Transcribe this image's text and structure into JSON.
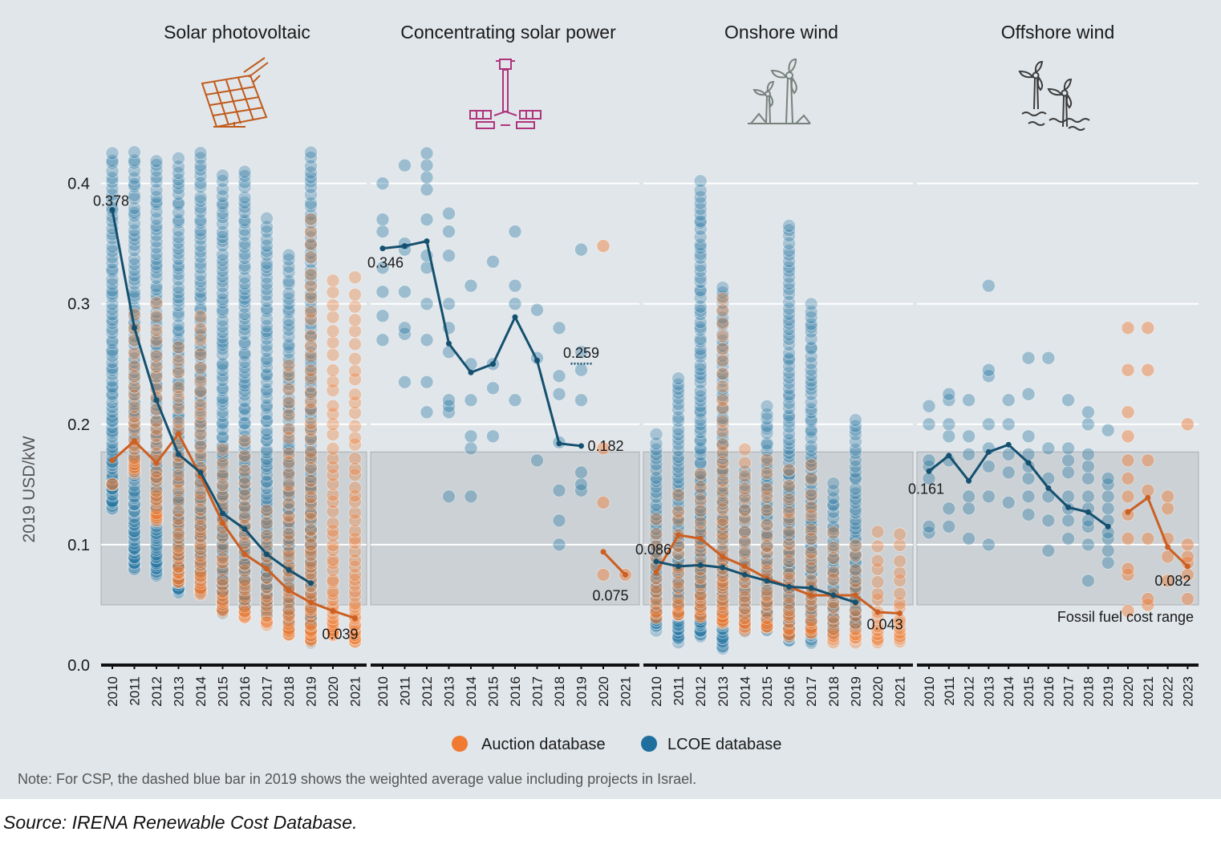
{
  "chart_data": {
    "type": "scatter",
    "ylabel": "2019 USD/kW",
    "ylim": [
      0,
      0.42
    ],
    "yticks": [
      "0.0",
      "0.1",
      "0.2",
      "0.3",
      "0.4"
    ],
    "grid": true,
    "band": {
      "label": "Fossil fuel cost range",
      "range": [
        0.05,
        0.177
      ]
    },
    "legend": {
      "position": "bottom-center",
      "entries": [
        {
          "label": "Auction database",
          "color": "#f07a32"
        },
        {
          "label": "LCOE database",
          "color": "#1e6f9e"
        }
      ]
    },
    "note": "Note: For CSP, the dashed blue bar in 2019 shows the weighted average value including projects in Israel.",
    "source": "Source: IRENA Renewable Cost Database.",
    "colors": {
      "auction": "#f07a32",
      "lcoe": "#1e6f9e",
      "auction_line": "#cc5f22",
      "lcoe_line": "#14506f",
      "background": "#e1e6ea",
      "band": "#cbd1d5",
      "pv_icon": "#c05b1c",
      "csp_icon": "#b0347c",
      "wind_icon": "#77827c"
    },
    "panels": [
      {
        "title": "Solar photovoltaic",
        "icon": "solar-panel-icon",
        "years": [
          "2010",
          "2011",
          "2012",
          "2013",
          "2014",
          "2015",
          "2016",
          "2017",
          "2018",
          "2019",
          "2020",
          "2021"
        ],
        "lcoe_avg": {
          "years": [
            "2010",
            "2011",
            "2012",
            "2013",
            "2014",
            "2015",
            "2016",
            "2017",
            "2018",
            "2019"
          ],
          "values": [
            0.378,
            0.28,
            0.22,
            0.175,
            0.16,
            0.126,
            0.113,
            0.092,
            0.079,
            0.068
          ]
        },
        "auction_avg": {
          "years": [
            "2010",
            "2011",
            "2012",
            "2013",
            "2014",
            "2015",
            "2016",
            "2017",
            "2018",
            "2019",
            "2020",
            "2021"
          ],
          "values": [
            0.17,
            0.186,
            0.168,
            0.192,
            0.157,
            0.118,
            0.092,
            0.08,
            0.062,
            0.052,
            0.045,
            0.039
          ]
        },
        "lcoe_range": {
          "2010": [
            0.13,
            0.425
          ],
          "2011": [
            0.08,
            0.425
          ],
          "2012": [
            0.075,
            0.42
          ],
          "2013": [
            0.06,
            0.42
          ],
          "2014": [
            0.06,
            0.425
          ],
          "2015": [
            0.045,
            0.405
          ],
          "2016": [
            0.045,
            0.41
          ],
          "2017": [
            0.04,
            0.37
          ],
          "2018": [
            0.03,
            0.34
          ],
          "2019": [
            0.02,
            0.425
          ]
        },
        "auction_range": {
          "2010": [
            0.15,
            0.15
          ],
          "2011": [
            0.16,
            0.29
          ],
          "2012": [
            0.12,
            0.3
          ],
          "2013": [
            0.07,
            0.265
          ],
          "2014": [
            0.06,
            0.29
          ],
          "2015": [
            0.045,
            0.18
          ],
          "2016": [
            0.04,
            0.185
          ],
          "2017": [
            0.035,
            0.13
          ],
          "2018": [
            0.025,
            0.25
          ],
          "2019": [
            0.02,
            0.37
          ],
          "2020": [
            0.025,
            0.32
          ],
          "2021": [
            0.02,
            0.32
          ]
        },
        "labels": [
          {
            "text": "0.378",
            "year": "2010",
            "value": 0.378,
            "anchor": "start"
          },
          {
            "text": "0.039",
            "year": "2021",
            "value": 0.039,
            "anchor": "end"
          }
        ]
      },
      {
        "title": "Concentrating solar power",
        "icon": "csp-tower-icon",
        "years": [
          "2010",
          "2011",
          "2012",
          "2013",
          "2014",
          "2015",
          "2016",
          "2017",
          "2018",
          "2019",
          "2020",
          "2021"
        ],
        "lcoe_avg": {
          "years": [
            "2010",
            "2011",
            "2012",
            "2013",
            "2014",
            "2015",
            "2016",
            "2017",
            "2018",
            "2019"
          ],
          "values": [
            0.346,
            0.348,
            0.352,
            0.267,
            0.243,
            0.25,
            0.289,
            0.253,
            0.184,
            0.182
          ]
        },
        "auction_avg": {
          "years": [
            "2020",
            "2021"
          ],
          "values": [
            0.094,
            0.075
          ]
        },
        "dashed_2019": 0.259,
        "lcoe_points": {
          "2010": [
            0.27,
            0.29,
            0.31,
            0.33,
            0.36,
            0.37,
            0.4
          ],
          "2011": [
            0.235,
            0.275,
            0.28,
            0.31,
            0.345,
            0.35,
            0.415
          ],
          "2012": [
            0.21,
            0.235,
            0.27,
            0.3,
            0.33,
            0.34,
            0.37,
            0.395,
            0.405,
            0.415,
            0.425
          ],
          "2013": [
            0.14,
            0.21,
            0.215,
            0.22,
            0.26,
            0.28,
            0.3,
            0.34,
            0.36,
            0.375
          ],
          "2014": [
            0.14,
            0.18,
            0.19,
            0.22,
            0.25,
            0.315
          ],
          "2015": [
            0.19,
            0.23,
            0.25,
            0.335
          ],
          "2016": [
            0.22,
            0.3,
            0.315,
            0.36
          ],
          "2017": [
            0.17,
            0.255,
            0.295
          ],
          "2018": [
            0.1,
            0.12,
            0.145,
            0.185,
            0.225,
            0.24,
            0.28
          ],
          "2019": [
            0.145,
            0.15,
            0.16,
            0.22,
            0.245,
            0.26,
            0.345
          ]
        },
        "auction_points": {
          "2020": [
            0.075,
            0.135,
            0.18,
            0.348
          ],
          "2021": [
            0.075
          ]
        },
        "labels": [
          {
            "text": "0.346",
            "year": "2010",
            "value": 0.346,
            "anchor": "end"
          },
          {
            "text": "0.259",
            "year": "2019",
            "value": 0.259,
            "anchor": "middle"
          },
          {
            "text": "0.182",
            "year": "2019",
            "value": 0.182,
            "anchor": "start"
          },
          {
            "text": "0.075",
            "year": "2021",
            "value": 0.075,
            "anchor": "end"
          }
        ]
      },
      {
        "title": "Onshore wind",
        "icon": "onshore-wind-turbine-icon",
        "years": [
          "2010",
          "2011",
          "2012",
          "2013",
          "2014",
          "2015",
          "2016",
          "2017",
          "2018",
          "2019",
          "2020",
          "2021"
        ],
        "lcoe_avg": {
          "years": [
            "2010",
            "2011",
            "2012",
            "2013",
            "2014",
            "2015",
            "2016",
            "2017",
            "2018",
            "2019"
          ],
          "values": [
            0.086,
            0.082,
            0.083,
            0.081,
            0.075,
            0.07,
            0.065,
            0.064,
            0.058,
            0.052
          ]
        },
        "auction_avg": {
          "years": [
            "2010",
            "2011",
            "2012",
            "2013",
            "2014",
            "2015",
            "2016",
            "2017",
            "2018",
            "2019",
            "2020",
            "2021"
          ],
          "values": [
            0.077,
            0.108,
            0.105,
            0.09,
            0.082,
            0.072,
            0.065,
            0.058,
            0.058,
            0.058,
            0.044,
            0.043
          ]
        },
        "lcoe_range": {
          "2010": [
            0.03,
            0.19
          ],
          "2011": [
            0.02,
            0.24
          ],
          "2012": [
            0.025,
            0.4
          ],
          "2013": [
            0.015,
            0.315
          ],
          "2014": [
            0.03,
            0.16
          ],
          "2015": [
            0.03,
            0.215
          ],
          "2016": [
            0.02,
            0.365
          ],
          "2017": [
            0.02,
            0.3
          ],
          "2018": [
            0.025,
            0.15
          ],
          "2019": [
            0.03,
            0.205
          ]
        },
        "auction_range": {
          "2010": [
            0.04,
            0.12
          ],
          "2011": [
            0.04,
            0.14
          ],
          "2012": [
            0.04,
            0.16
          ],
          "2013": [
            0.035,
            0.305
          ],
          "2014": [
            0.03,
            0.18
          ],
          "2015": [
            0.03,
            0.17
          ],
          "2016": [
            0.025,
            0.16
          ],
          "2017": [
            0.025,
            0.165
          ],
          "2018": [
            0.02,
            0.11
          ],
          "2019": [
            0.02,
            0.1
          ],
          "2020": [
            0.02,
            0.11
          ],
          "2021": [
            0.02,
            0.11
          ]
        },
        "labels": [
          {
            "text": "0.086",
            "year": "2010",
            "value": 0.086,
            "anchor": "start"
          },
          {
            "text": "0.043",
            "year": "2021",
            "value": 0.043,
            "anchor": "end"
          }
        ]
      },
      {
        "title": "Offshore wind",
        "icon": "offshore-wind-turbine-icon",
        "years": [
          "2010",
          "2011",
          "2012",
          "2013",
          "2014",
          "2015",
          "2016",
          "2017",
          "2018",
          "2019",
          "2020",
          "2021",
          "2022",
          "2023"
        ],
        "lcoe_avg": {
          "years": [
            "2010",
            "2011",
            "2012",
            "2013",
            "2014",
            "2015",
            "2016",
            "2017",
            "2018",
            "2019"
          ],
          "values": [
            0.161,
            0.174,
            0.153,
            0.177,
            0.183,
            0.168,
            0.147,
            0.131,
            0.127,
            0.115
          ]
        },
        "auction_avg": {
          "years": [
            "2020",
            "2021",
            "2022",
            "2023"
          ],
          "values": [
            0.127,
            0.139,
            0.098,
            0.082
          ]
        },
        "lcoe_points": {
          "2010": [
            0.11,
            0.115,
            0.155,
            0.165,
            0.17,
            0.2,
            0.215
          ],
          "2011": [
            0.115,
            0.13,
            0.17,
            0.19,
            0.2,
            0.22,
            0.225
          ],
          "2012": [
            0.105,
            0.13,
            0.14,
            0.175,
            0.19,
            0.22
          ],
          "2013": [
            0.1,
            0.14,
            0.165,
            0.18,
            0.2,
            0.24,
            0.245,
            0.315
          ],
          "2014": [
            0.135,
            0.16,
            0.175,
            0.2,
            0.22
          ],
          "2015": [
            0.125,
            0.14,
            0.155,
            0.165,
            0.175,
            0.19,
            0.225,
            0.255
          ],
          "2016": [
            0.095,
            0.12,
            0.14,
            0.155,
            0.18,
            0.255
          ],
          "2017": [
            0.105,
            0.12,
            0.13,
            0.14,
            0.16,
            0.17,
            0.18,
            0.22
          ],
          "2018": [
            0.07,
            0.1,
            0.115,
            0.12,
            0.13,
            0.14,
            0.155,
            0.165,
            0.175,
            0.2,
            0.21
          ],
          "2019": [
            0.085,
            0.095,
            0.105,
            0.11,
            0.12,
            0.13,
            0.14,
            0.15,
            0.155,
            0.195
          ]
        },
        "auction_points": {
          "2020": [
            0.045,
            0.075,
            0.08,
            0.105,
            0.125,
            0.14,
            0.155,
            0.17,
            0.19,
            0.21,
            0.245,
            0.28
          ],
          "2021": [
            0.05,
            0.055,
            0.105,
            0.145,
            0.17,
            0.245,
            0.28
          ],
          "2022": [
            0.07,
            0.09,
            0.105,
            0.13,
            0.14
          ],
          "2023": [
            0.055,
            0.075,
            0.085,
            0.09,
            0.1,
            0.2
          ]
        },
        "labels": [
          {
            "text": "0.161",
            "year": "2010",
            "value": 0.161,
            "anchor": "start"
          },
          {
            "text": "0.082",
            "year": "2023",
            "value": 0.082,
            "anchor": "end"
          }
        ]
      }
    ]
  }
}
